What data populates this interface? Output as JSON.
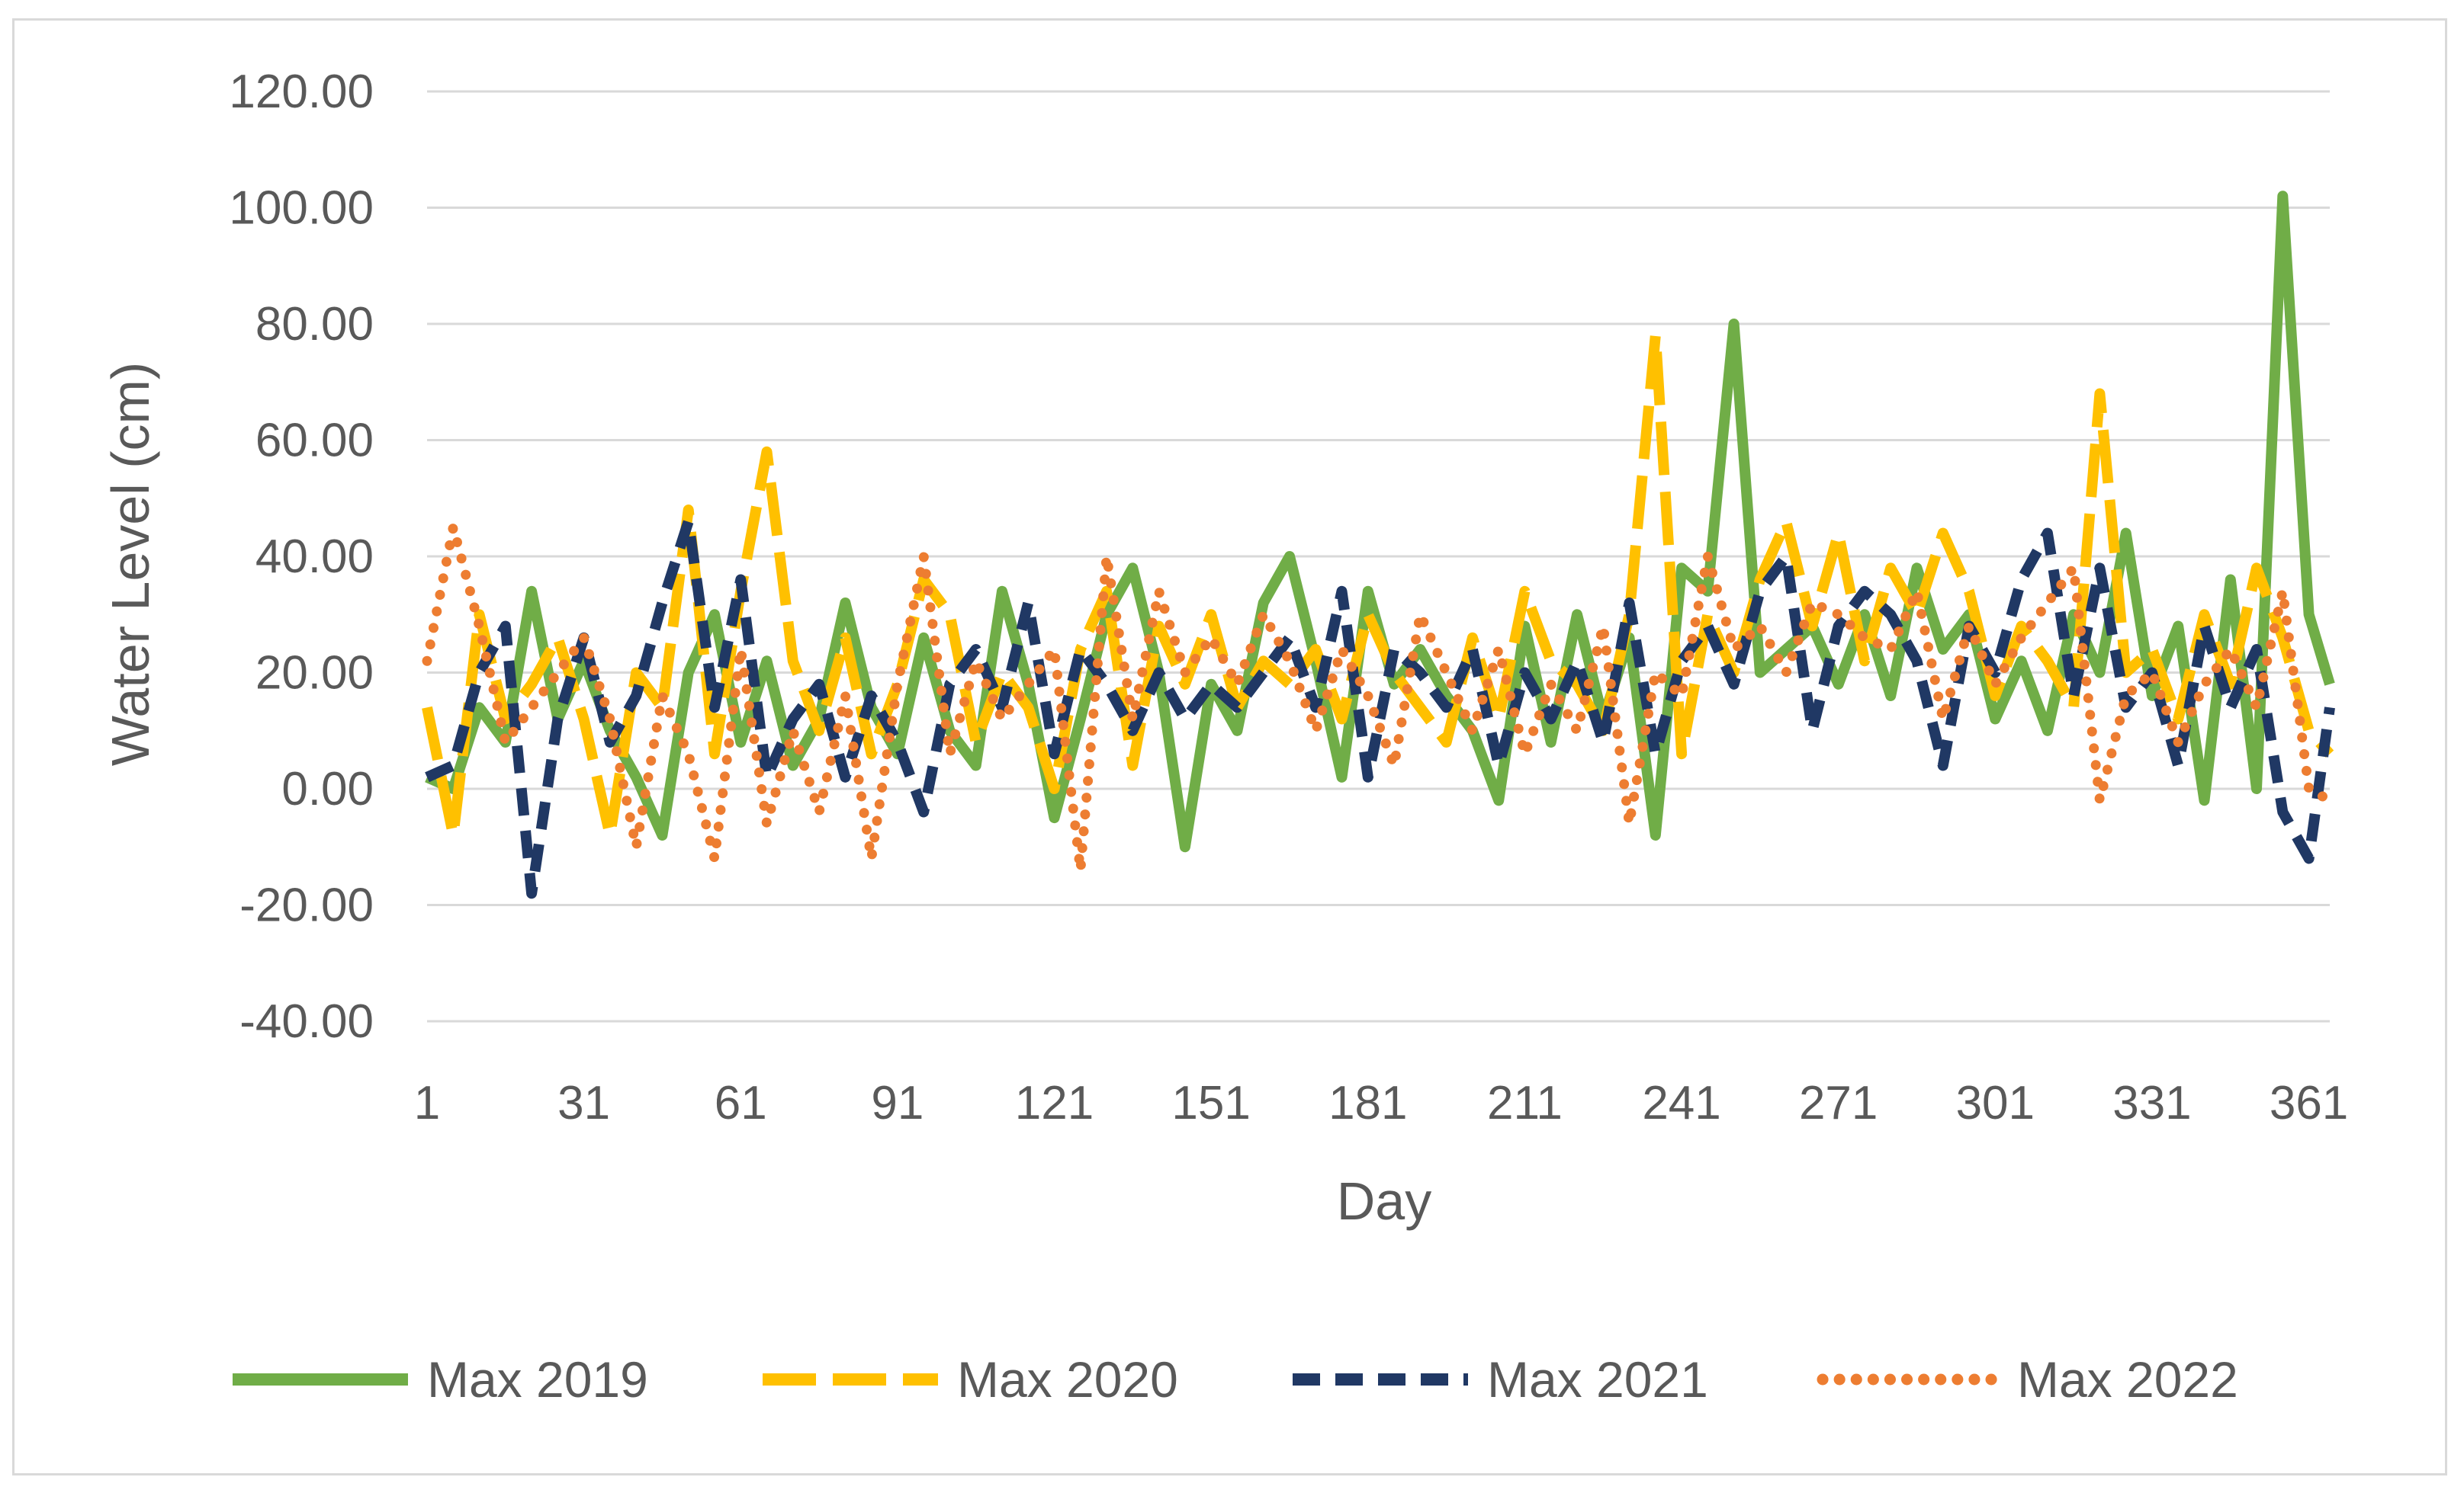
{
  "chart_data": {
    "type": "line",
    "title": "",
    "xlabel": "Day",
    "ylabel": "Water Level (cm)",
    "ylim": [
      -40,
      120
    ],
    "xlim": [
      1,
      365
    ],
    "yticks": [
      "120.00",
      "100.00",
      "80.00",
      "60.00",
      "40.00",
      "20.00",
      "0.00",
      "-20.00",
      "-40.00"
    ],
    "xticks": [
      "1",
      "31",
      "61",
      "91",
      "121",
      "151",
      "181",
      "211",
      "241",
      "271",
      "301",
      "331",
      "361"
    ],
    "grid": "horizontal",
    "legend_position": "bottom",
    "x": [
      1,
      6,
      11,
      16,
      21,
      26,
      31,
      36,
      41,
      46,
      51,
      56,
      61,
      66,
      71,
      76,
      81,
      86,
      91,
      96,
      101,
      106,
      111,
      116,
      121,
      126,
      131,
      136,
      141,
      146,
      151,
      156,
      161,
      166,
      171,
      176,
      181,
      186,
      191,
      196,
      201,
      206,
      211,
      216,
      221,
      226,
      231,
      236,
      241,
      246,
      251,
      256,
      261,
      266,
      271,
      276,
      281,
      286,
      291,
      296,
      301,
      306,
      311,
      316,
      321,
      326,
      331,
      336,
      341,
      346,
      351,
      356,
      361,
      365
    ],
    "series": [
      {
        "name": "Max 2019",
        "color": "#70ad47",
        "style": "solid",
        "values": [
          2,
          0,
          14,
          8,
          34,
          12,
          22,
          10,
          2,
          -8,
          20,
          30,
          8,
          22,
          4,
          12,
          32,
          14,
          6,
          26,
          10,
          4,
          34,
          18,
          -5,
          12,
          30,
          38,
          20,
          -10,
          18,
          10,
          32,
          40,
          22,
          2,
          34,
          18,
          24,
          16,
          10,
          -2,
          28,
          8,
          30,
          12,
          26,
          -8,
          38,
          34,
          80,
          20,
          24,
          28,
          18,
          30,
          16,
          38,
          24,
          30,
          12,
          22,
          10,
          30,
          20,
          44,
          16,
          28,
          -2,
          36,
          0,
          102,
          30,
          18
        ]
      },
      {
        "name": "Max 2020",
        "color": "#ffc000",
        "style": "long-dash",
        "values": [
          14,
          -8,
          30,
          12,
          18,
          26,
          12,
          -8,
          20,
          14,
          48,
          6,
          34,
          58,
          22,
          10,
          26,
          6,
          18,
          36,
          30,
          8,
          20,
          14,
          0,
          24,
          34,
          4,
          28,
          18,
          30,
          14,
          22,
          18,
          24,
          12,
          30,
          20,
          14,
          8,
          26,
          12,
          34,
          22,
          18,
          10,
          30,
          78,
          6,
          30,
          20,
          36,
          46,
          28,
          44,
          22,
          38,
          30,
          44,
          34,
          16,
          28,
          22,
          14,
          68,
          20,
          24,
          12,
          30,
          18,
          38,
          26,
          10,
          6
        ]
      },
      {
        "name": "Max 2021",
        "color": "#203864",
        "style": "dash",
        "values": [
          2,
          4,
          20,
          28,
          -18,
          12,
          26,
          8,
          16,
          32,
          46,
          14,
          36,
          2,
          12,
          18,
          2,
          16,
          8,
          -4,
          18,
          24,
          14,
          32,
          6,
          24,
          18,
          10,
          20,
          12,
          18,
          14,
          20,
          26,
          14,
          34,
          2,
          24,
          20,
          14,
          24,
          4,
          20,
          12,
          22,
          8,
          32,
          6,
          22,
          28,
          18,
          34,
          40,
          10,
          28,
          34,
          30,
          22,
          4,
          28,
          20,
          36,
          44,
          16,
          38,
          14,
          20,
          4,
          28,
          14,
          24,
          -4,
          -12,
          14
        ]
      },
      {
        "name": "Max 2022",
        "color": "#ed7d31",
        "style": "dot",
        "values": [
          22,
          45,
          28,
          8,
          14,
          20,
          26,
          12,
          -10,
          16,
          6,
          -12,
          24,
          -6,
          10,
          -4,
          16,
          -12,
          18,
          40,
          6,
          22,
          12,
          18,
          24,
          -14,
          40,
          12,
          34,
          20,
          26,
          18,
          30,
          22,
          10,
          24,
          16,
          4,
          30,
          20,
          10,
          24,
          6,
          18,
          10,
          28,
          -6,
          20,
          16,
          40,
          24,
          28,
          20,
          32,
          30,
          26,
          24,
          34,
          12,
          28,
          18,
          26,
          32,
          38,
          -2,
          16,
          20,
          8,
          18,
          24,
          14,
          34,
          0,
          -2
        ]
      }
    ]
  }
}
